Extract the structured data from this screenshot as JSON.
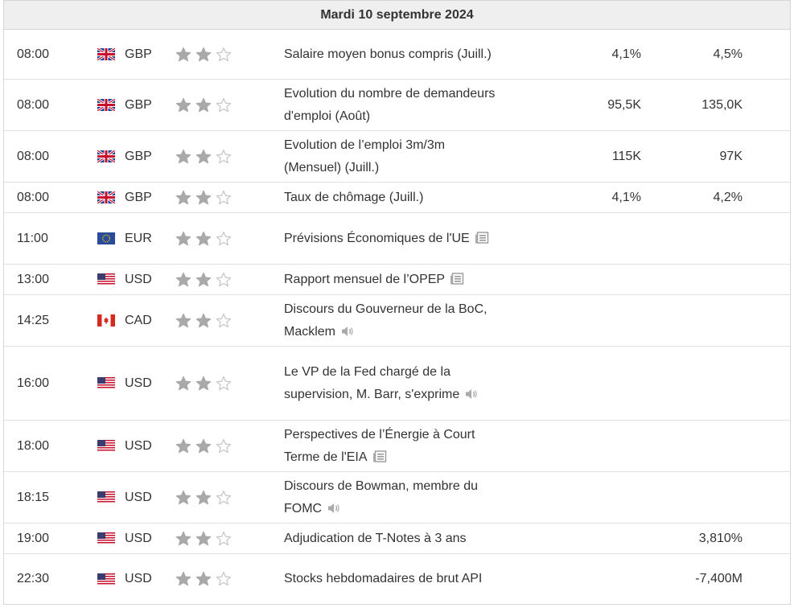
{
  "date_header": "Mardi 10 septembre 2024",
  "rows": [
    {
      "time": "08:00",
      "currency": "GBP",
      "flag": "gb-flag-icon",
      "stars": 2,
      "event": "Salaire moyen bonus compris (Juill.)",
      "event_icon": "",
      "actual": "4,1%",
      "forecast": "4,5%",
      "height": 62
    },
    {
      "time": "08:00",
      "currency": "GBP",
      "flag": "gb-flag-icon",
      "stars": 2,
      "event": "Evolution du nombre de demandeurs d'emploi (Août)",
      "event_icon": "",
      "actual": "95,5K",
      "forecast": "135,0K",
      "height": 64
    },
    {
      "time": "08:00",
      "currency": "GBP",
      "flag": "gb-flag-icon",
      "stars": 2,
      "event": "Evolution de l’emploi 3m/3m (Mensuel) (Juill.)",
      "event_icon": "",
      "actual": "115K",
      "forecast": "97K",
      "height": 64
    },
    {
      "time": "08:00",
      "currency": "GBP",
      "flag": "gb-flag-icon",
      "stars": 2,
      "event": "Taux de chômage (Juill.)",
      "event_icon": "",
      "actual": "4,1%",
      "forecast": "4,2%",
      "height": 38
    },
    {
      "time": "11:00",
      "currency": "EUR",
      "flag": "eu-flag-icon",
      "stars": 2,
      "event": "Prévisions Économiques de l'UE",
      "event_icon": "report-icon",
      "actual": "",
      "forecast": "",
      "height": 64
    },
    {
      "time": "13:00",
      "currency": "USD",
      "flag": "us-flag-icon",
      "stars": 2,
      "event": "Rapport mensuel de l’OPEP",
      "event_icon": "report-icon",
      "actual": "",
      "forecast": "",
      "height": 38
    },
    {
      "time": "14:25",
      "currency": "CAD",
      "flag": "ca-flag-icon",
      "stars": 2,
      "event": "Discours du Gouverneur de la BoC, Macklem",
      "event_icon": "speaker-icon",
      "actual": "",
      "forecast": "",
      "height": 64
    },
    {
      "time": "16:00",
      "currency": "USD",
      "flag": "us-flag-icon",
      "stars": 2,
      "event": "Le VP de la Fed chargé de la supervision, M. Barr, s'exprime",
      "event_icon": "speaker-icon",
      "actual": "",
      "forecast": "",
      "height": 92
    },
    {
      "time": "18:00",
      "currency": "USD",
      "flag": "us-flag-icon",
      "stars": 2,
      "event": "Perspectives de l’Énergie à Court Terme de l'EIA",
      "event_icon": "report-icon",
      "actual": "",
      "forecast": "",
      "height": 64
    },
    {
      "time": "18:15",
      "currency": "USD",
      "flag": "us-flag-icon",
      "stars": 2,
      "event": "Discours de Bowman, membre du FOMC",
      "event_icon": "speaker-icon",
      "actual": "",
      "forecast": "",
      "height": 64
    },
    {
      "time": "19:00",
      "currency": "USD",
      "flag": "us-flag-icon",
      "stars": 2,
      "event": "Adjudication de T-Notes à 3 ans",
      "event_icon": "",
      "actual": "",
      "forecast": "3,810%",
      "height": 38
    },
    {
      "time": "22:30",
      "currency": "USD",
      "flag": "us-flag-icon",
      "stars": 2,
      "event": "Stocks hebdomadaires de brut API",
      "event_icon": "",
      "actual": "",
      "forecast": "-7,400M",
      "height": 62
    }
  ],
  "importance_max": 3,
  "colors": {
    "star_filled": "#a9a9a9",
    "star_empty": "#c8c8c8",
    "header_bg": "#efefef",
    "border": "#d6d6d6"
  }
}
